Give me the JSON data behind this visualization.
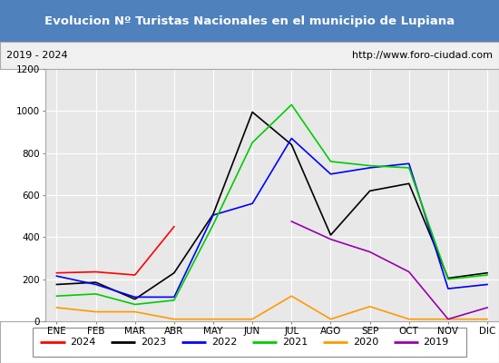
{
  "title": "Evolucion Nº Turistas Nacionales en el municipio de Lupiana",
  "subtitle_left": "2019 - 2024",
  "subtitle_right": "http://www.foro-ciudad.com",
  "title_bg_color": "#4f81bd",
  "title_text_color": "#ffffff",
  "plot_bg_color": "#e8e8e8",
  "outer_bg_color": "#ffffff",
  "months": [
    "ENE",
    "FEB",
    "MAR",
    "ABR",
    "MAY",
    "JUN",
    "JUL",
    "AGO",
    "SEP",
    "OCT",
    "NOV",
    "DIC"
  ],
  "ylim": [
    0,
    1200
  ],
  "yticks": [
    0,
    200,
    400,
    600,
    800,
    1000,
    1200
  ],
  "series": {
    "2024": {
      "color": "#ff0000",
      "data": [
        230,
        235,
        220,
        450,
        null,
        null,
        null,
        null,
        null,
        null,
        null,
        null
      ]
    },
    "2023": {
      "color": "#000000",
      "data": [
        175,
        185,
        105,
        230,
        510,
        995,
        840,
        410,
        620,
        655,
        205,
        230
      ]
    },
    "2022": {
      "color": "#0000ff",
      "data": [
        215,
        175,
        115,
        115,
        505,
        560,
        870,
        700,
        730,
        750,
        155,
        175
      ]
    },
    "2021": {
      "color": "#00cc00",
      "data": [
        120,
        130,
        80,
        100,
        460,
        850,
        1030,
        760,
        740,
        730,
        200,
        220
      ]
    },
    "2020": {
      "color": "#ff9900",
      "data": [
        65,
        45,
        45,
        10,
        10,
        10,
        120,
        10,
        70,
        10,
        10,
        10
      ]
    },
    "2019": {
      "color": "#9900aa",
      "data": [
        null,
        null,
        null,
        null,
        null,
        null,
        475,
        390,
        330,
        235,
        10,
        65
      ]
    }
  },
  "legend_order": [
    "2024",
    "2023",
    "2022",
    "2021",
    "2020",
    "2019"
  ]
}
